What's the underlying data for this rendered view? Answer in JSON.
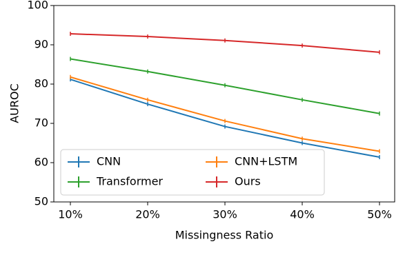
{
  "chart_data": {
    "type": "line",
    "x_label": "Missingness Ratio",
    "y_label": "AUROC",
    "categories": [
      "10%",
      "20%",
      "30%",
      "40%",
      "50%"
    ],
    "series": [
      {
        "name": "CNN",
        "color": "#1f77b4",
        "values": [
          81.2,
          74.9,
          69.2,
          65.0,
          61.4
        ]
      },
      {
        "name": "CNN+LSTM",
        "color": "#ff7f0e",
        "values": [
          81.8,
          76.0,
          70.6,
          66.1,
          62.9
        ]
      },
      {
        "name": "Transformer",
        "color": "#2ca02c",
        "values": [
          86.4,
          83.2,
          79.7,
          76.0,
          72.5
        ]
      },
      {
        "name": "Ours",
        "color": "#d62728",
        "values": [
          92.8,
          92.1,
          91.1,
          89.8,
          88.1
        ]
      }
    ],
    "ylim": [
      50,
      100
    ],
    "yticks": [
      50,
      60,
      70,
      80,
      90,
      100
    ],
    "legend": "lower left",
    "grid": false
  }
}
